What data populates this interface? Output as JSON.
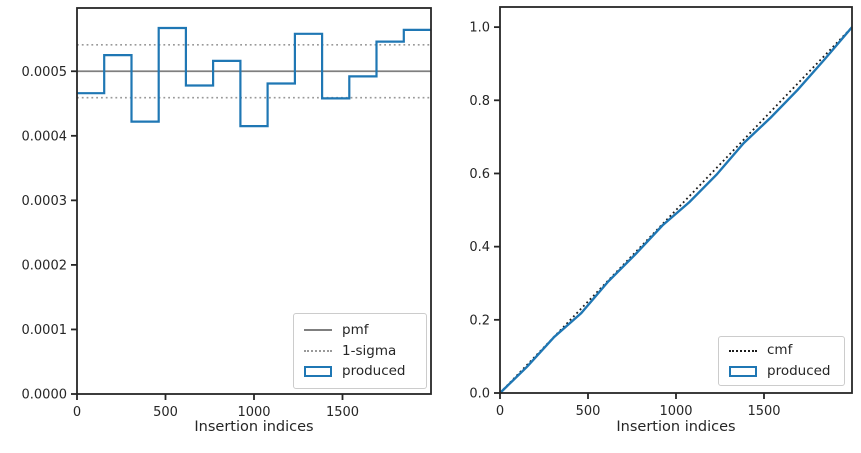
{
  "figure": {
    "background": "#ffffff",
    "text_color": "#262626",
    "spine_color": "#262626"
  },
  "colors": {
    "produced_blue": "#1f77b4",
    "pmf_gray": "#7f7f7f",
    "sigma_gray": "#999999",
    "cmf_black": "#1b1b1b",
    "legend_border": "#cccccc"
  },
  "chart_data": [
    {
      "type": "bar",
      "subtype": "step-histogram",
      "title": "",
      "xlabel": "Insertion indices",
      "ylabel": "",
      "xlim": [
        0,
        2000
      ],
      "ylim": [
        0,
        0.000598
      ],
      "grid": false,
      "xticks": {
        "values": [
          0,
          500,
          1000,
          1500
        ],
        "labels": [
          "0",
          "500",
          "1000",
          "1500"
        ]
      },
      "yticks": {
        "values": [
          0,
          0.0001,
          0.0002,
          0.0003,
          0.0004,
          0.0005
        ],
        "labels": [
          "0.0000",
          "0.0001",
          "0.0002",
          "0.0003",
          "0.0004",
          "0.0005"
        ]
      },
      "series": [
        {
          "name": "pmf",
          "kind": "hline",
          "y": 0.0005,
          "color": "#7f7f7f",
          "linestyle": "solid",
          "linewidth": 1.8
        },
        {
          "name": "1-sigma-upper",
          "kind": "hline",
          "y": 0.000541,
          "color": "#999999",
          "linestyle": "dotted",
          "linewidth": 1.6
        },
        {
          "name": "1-sigma-lower",
          "kind": "hline",
          "y": 0.000459,
          "color": "#999999",
          "linestyle": "dotted",
          "linewidth": 1.6
        },
        {
          "name": "produced",
          "kind": "step",
          "bin_edges": [
            0,
            153.8,
            307.7,
            461.5,
            615.4,
            769.2,
            923.1,
            1076.9,
            1230.8,
            1384.6,
            1538.5,
            1692.3,
            1846.2,
            2000
          ],
          "values": [
            0.000466,
            0.000525,
            0.000422,
            0.000567,
            0.000478,
            0.000516,
            0.000415,
            0.000481,
            0.000558,
            0.000458,
            0.000492,
            0.000546,
            0.000564
          ],
          "color": "#1f77b4",
          "linestyle": "solid",
          "linewidth": 2.2
        }
      ],
      "legend": {
        "position": "lower right",
        "entries": [
          {
            "label": "pmf",
            "swatch": "line-solid",
            "color": "#7f7f7f"
          },
          {
            "label": "1-sigma",
            "swatch": "line-dotted",
            "color": "#999999"
          },
          {
            "label": "produced",
            "swatch": "rect-outline",
            "color": "#1f77b4"
          }
        ]
      }
    },
    {
      "type": "line",
      "subtype": "cdf",
      "title": "",
      "xlabel": "Insertion indices",
      "ylabel": "",
      "xlim": [
        0,
        2000
      ],
      "ylim": [
        0,
        1.055
      ],
      "grid": false,
      "xticks": {
        "values": [
          0,
          500,
          1000,
          1500
        ],
        "labels": [
          "0",
          "500",
          "1000",
          "1500"
        ]
      },
      "yticks": {
        "values": [
          0,
          0.2,
          0.4,
          0.6,
          0.8,
          1.0
        ],
        "labels": [
          "0.0",
          "0.2",
          "0.4",
          "0.6",
          "0.8",
          "1.0"
        ]
      },
      "series": [
        {
          "name": "cmf",
          "kind": "line",
          "x": [
            0,
            2000
          ],
          "y": [
            0,
            1.0
          ],
          "color": "#1b1b1b",
          "linestyle": "dotted",
          "linewidth": 1.8
        },
        {
          "name": "produced",
          "kind": "line",
          "x": [
            0,
            153.8,
            307.7,
            461.5,
            615.4,
            769.2,
            923.1,
            1076.9,
            1230.8,
            1384.6,
            1538.5,
            1692.3,
            1846.2,
            2000
          ],
          "y": [
            0,
            0.072,
            0.153,
            0.218,
            0.305,
            0.379,
            0.458,
            0.522,
            0.597,
            0.683,
            0.753,
            0.829,
            0.913,
            1.0
          ],
          "color": "#1f77b4",
          "linestyle": "solid",
          "linewidth": 2.4
        }
      ],
      "legend": {
        "position": "lower right",
        "entries": [
          {
            "label": "cmf",
            "swatch": "line-dotted",
            "color": "#1b1b1b"
          },
          {
            "label": "produced",
            "swatch": "rect-outline",
            "color": "#1f77b4"
          }
        ]
      }
    }
  ]
}
